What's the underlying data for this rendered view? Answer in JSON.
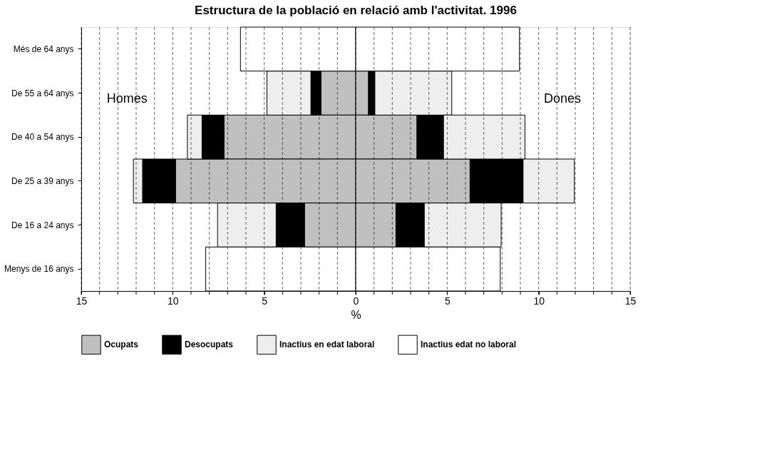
{
  "chart_data": {
    "type": "bar",
    "orientation": "horizontal",
    "stacked": true,
    "title": "Estructura de la població en relació amb l'activitat. 1996",
    "xlabel": "%",
    "categories": [
      "Més de 64 anys",
      "De 55 a 64 anys",
      "De 40 a 54 anys",
      "De 25 a 39 anys",
      "De 16 a 24 anys",
      "Menys de 16 anys"
    ],
    "series": [
      {
        "color": "#c0c0c0",
        "values": [
          null,
          -1.9,
          -7.2,
          -9.85,
          -2.8,
          null
        ]
      },
      {
        "color": "#000000",
        "values": [
          null,
          -0.55,
          -1.2,
          -1.8,
          -1.55,
          null
        ]
      },
      {
        "color": "#eeeeee",
        "values": [
          null,
          -2.4,
          -0.8,
          -0.5,
          -3.2,
          null
        ]
      },
      {
        "color": "#ffffff",
        "values": [
          -6.3,
          null,
          null,
          null,
          null,
          -8.2
        ]
      },
      {
        "name": "Ocupats",
        "color": "#c0c0c0",
        "values": [
          null,
          0.7,
          3.35,
          6.25,
          2.2,
          null
        ]
      },
      {
        "name": "Desocupats",
        "color": "#000000",
        "values": [
          null,
          0.35,
          1.45,
          2.9,
          1.55,
          null
        ]
      },
      {
        "name": "Inactius en edat laboral",
        "color": "#eeeeee",
        "values": [
          null,
          4.2,
          4.45,
          2.8,
          4.2,
          null
        ]
      },
      {
        "name": "Inactius edat no laboral",
        "color": "#ffffff",
        "values": [
          8.95,
          null,
          null,
          null,
          null,
          7.9
        ]
      }
    ],
    "xlim": [
      -15,
      15
    ],
    "xticks": [
      {
        "value": -15,
        "label": "15"
      },
      {
        "value": -14,
        "label": null
      },
      {
        "value": -13,
        "label": null
      },
      {
        "value": -12,
        "label": null
      },
      {
        "value": -11,
        "label": null
      },
      {
        "value": -10,
        "label": "10"
      },
      {
        "value": -9,
        "label": null
      },
      {
        "value": -8,
        "label": null
      },
      {
        "value": -7,
        "label": null
      },
      {
        "value": -6,
        "label": null
      },
      {
        "value": -5,
        "label": "5"
      },
      {
        "value": -4,
        "label": null
      },
      {
        "value": -3,
        "label": null
      },
      {
        "value": -2,
        "label": null
      },
      {
        "value": -1,
        "label": null
      },
      0,
      {
        "value": 1,
        "label": null
      },
      {
        "value": 2,
        "label": null
      },
      {
        "value": 3,
        "label": null
      },
      {
        "value": 4,
        "label": null
      },
      5,
      {
        "value": 6,
        "label": null
      },
      {
        "value": 7,
        "label": null
      },
      {
        "value": 8,
        "label": null
      },
      {
        "value": 9,
        "label": null
      },
      10,
      {
        "value": 11,
        "label": null
      },
      {
        "value": 12,
        "label": null
      },
      {
        "value": 13,
        "label": null
      },
      {
        "value": 14,
        "label": null
      },
      15
    ],
    "grid": "x",
    "legend": "bottom",
    "annotations": [
      "Homes",
      "Dones"
    ]
  }
}
